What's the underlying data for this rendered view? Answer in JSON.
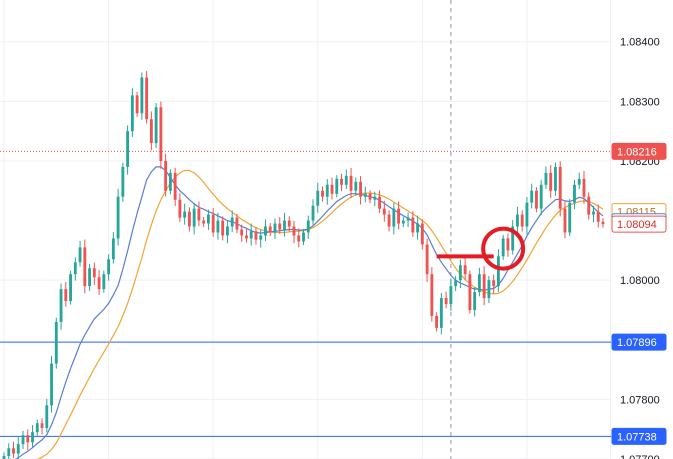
{
  "chart_data": {
    "type": "candlestick",
    "title": "",
    "xlabel": "",
    "ylabel": "",
    "ylim": [
      1.077,
      1.0847
    ],
    "grid": true,
    "y_ticks": [
      "1.08400",
      "1.08300",
      "1.08200",
      "1.08000",
      "1.07800",
      "1.07700"
    ],
    "colors": {
      "up": "#26a69a",
      "down": "#ef5350",
      "ma_fast": "#5b7bd5",
      "ma_slow": "#f0a534",
      "hline": "#2962ff",
      "dotted_level": "#ef5350",
      "annotation": "#e51c23",
      "grid": "#eef0f3",
      "text": "#131722"
    },
    "price_tags": [
      {
        "label": "1.08216",
        "value": 1.08216,
        "style": "red-filled"
      },
      {
        "label": "1.08115",
        "value": 1.08115,
        "style": "orange-outline"
      },
      {
        "label": "1.08098",
        "value": 1.08098,
        "style": "blue-outline"
      },
      {
        "label": "1.08094",
        "value": 1.08094,
        "style": "red-outline"
      },
      {
        "label": "1.07896",
        "value": 1.07896,
        "style": "blue-filled"
      },
      {
        "label": "1.07738",
        "value": 1.07738,
        "style": "blue-filled"
      }
    ],
    "horizontal_lines": [
      1.07896,
      1.07738
    ],
    "dotted_level": 1.08216,
    "crosshair_bar": 94,
    "annotations": {
      "marker_line": {
        "from_bar": 91,
        "to_bar": 103,
        "value": 1.0804
      },
      "circle": {
        "bar": 105,
        "value": 1.08053
      }
    },
    "series": [
      {
        "name": "candles",
        "closes": [
          1.07705,
          1.07718,
          1.07709,
          1.07725,
          1.0774,
          1.07728,
          1.07745,
          1.0776,
          1.07752,
          1.0779,
          1.0786,
          1.0793,
          1.07985,
          1.07965,
          1.0801,
          1.0803,
          1.08055,
          1.0799,
          1.0802,
          1.08005,
          1.07985,
          1.0801,
          1.08035,
          1.0807,
          1.0814,
          1.0819,
          1.0825,
          1.0831,
          1.0828,
          1.0834,
          1.0827,
          1.0823,
          1.0829,
          1.082,
          1.0815,
          1.0818,
          1.08135,
          1.08105,
          1.08115,
          1.0809,
          1.0812,
          1.081,
          1.08095,
          1.0811,
          1.0808,
          1.081,
          1.08075,
          1.0809,
          1.08105,
          1.08085,
          1.08075,
          1.0807,
          1.08082,
          1.08068,
          1.08075,
          1.0809,
          1.0808,
          1.08095,
          1.08085,
          1.081,
          1.0809,
          1.08075,
          1.08065,
          1.0808,
          1.081,
          1.08125,
          1.0815,
          1.0814,
          1.0816,
          1.08145,
          1.0817,
          1.0816,
          1.08175,
          1.0815,
          1.08165,
          1.0814,
          1.08145,
          1.08135,
          1.0814,
          1.0812,
          1.0811,
          1.0809,
          1.0812,
          1.08095,
          1.081,
          1.08105,
          1.0808,
          1.08095,
          1.0806,
          1.0801,
          1.0794,
          1.0792,
          1.0797,
          1.0796,
          1.0799,
          1.08,
          1.08025,
          1.0801,
          1.0795,
          1.0798,
          1.0801,
          1.0797,
          1.08,
          1.0799,
          1.0804,
          1.0807,
          1.0805,
          1.0809,
          1.0811,
          1.0809,
          1.0813,
          1.0815,
          1.0812,
          1.0816,
          1.0818,
          1.0815,
          1.0819,
          1.0812,
          1.0808,
          1.0813,
          1.0816,
          1.0817,
          1.0814,
          1.0811,
          1.08115,
          1.08098,
          1.08094
        ]
      },
      {
        "name": "",
        "values": [
          1.0769,
          1.07695,
          1.07698,
          1.07702,
          1.07708,
          1.07713,
          1.07719,
          1.07726,
          1.07732,
          1.07741,
          1.07757,
          1.07778,
          1.07804,
          1.07829,
          1.07852,
          1.07872,
          1.07893,
          1.07908,
          1.07922,
          1.07935,
          1.07943,
          1.07951,
          1.07961,
          1.07975,
          1.07991,
          1.08018,
          1.08049,
          1.08082,
          1.08112,
          1.0814,
          1.08168,
          1.08182,
          1.0819,
          1.0819,
          1.08184,
          1.08172,
          1.0816,
          1.0815,
          1.08143,
          1.08135,
          1.08128,
          1.08122,
          1.08119,
          1.08115,
          1.08112,
          1.08108,
          1.08104,
          1.081,
          1.08098,
          1.08095,
          1.0809,
          1.08087,
          1.08083,
          1.0808,
          1.08079,
          1.0808,
          1.08081,
          1.08082,
          1.08083,
          1.08084,
          1.08085,
          1.08085,
          1.08084,
          1.08084,
          1.08086,
          1.08091,
          1.08099,
          1.08107,
          1.08116,
          1.08124,
          1.08132,
          1.08137,
          1.08142,
          1.08145,
          1.08145,
          1.08144,
          1.08142,
          1.0814,
          1.08138,
          1.08134,
          1.08129,
          1.08123,
          1.08118,
          1.08113,
          1.08108,
          1.08104,
          1.08099,
          1.08094,
          1.08087,
          1.08076,
          1.08059,
          1.08043,
          1.0803,
          1.08019,
          1.08008,
          1.08,
          1.07995,
          1.07992,
          1.07988,
          1.07985,
          1.07985,
          1.07983,
          1.07985,
          1.07986,
          1.07992,
          1.08003,
          1.08017,
          1.0803,
          1.08044,
          1.08058,
          1.08074,
          1.08088,
          1.081,
          1.08112,
          1.08121,
          1.08128,
          1.08135,
          1.08136,
          1.08133,
          1.08132,
          1.08135,
          1.08139,
          1.08137,
          1.0813,
          1.08122,
          1.08114,
          1.08108
        ]
      },
      {
        "name": "",
        "values": [
          1.0768,
          1.07682,
          1.07684,
          1.07686,
          1.07689,
          1.07692,
          1.07695,
          1.07699,
          1.07703,
          1.07708,
          1.07716,
          1.07727,
          1.07742,
          1.07758,
          1.07774,
          1.0779,
          1.07807,
          1.07822,
          1.07837,
          1.07852,
          1.07866,
          1.07879,
          1.07893,
          1.07907,
          1.07922,
          1.0794,
          1.07961,
          1.07985,
          1.08011,
          1.08038,
          1.08067,
          1.08093,
          1.08116,
          1.08135,
          1.0815,
          1.08163,
          1.08173,
          1.0818,
          1.08184,
          1.08184,
          1.0818,
          1.08173,
          1.08164,
          1.08154,
          1.08144,
          1.08135,
          1.08127,
          1.0812,
          1.08114,
          1.08108,
          1.08102,
          1.08097,
          1.08092,
          1.08088,
          1.08085,
          1.08083,
          1.08081,
          1.0808,
          1.0808,
          1.0808,
          1.08081,
          1.08082,
          1.08082,
          1.08083,
          1.08085,
          1.08088,
          1.08093,
          1.08099,
          1.08106,
          1.08113,
          1.08121,
          1.08128,
          1.08134,
          1.08139,
          1.08143,
          1.08145,
          1.08146,
          1.08146,
          1.08145,
          1.08143,
          1.0814,
          1.08136,
          1.08131,
          1.08126,
          1.08121,
          1.08116,
          1.08111,
          1.08106,
          1.081,
          1.08093,
          1.08083,
          1.08071,
          1.08058,
          1.08045,
          1.08032,
          1.0802,
          1.0801,
          1.08001,
          1.07994,
          1.07988,
          1.07984,
          1.0798,
          1.07978,
          1.07977,
          1.07978,
          1.07982,
          1.07989,
          1.07998,
          1.08009,
          1.08021,
          1.08034,
          1.08048,
          1.08062,
          1.08075,
          1.08088,
          1.08099,
          1.08109,
          1.08117,
          1.08122,
          1.08126,
          1.08129,
          1.08132,
          1.08133,
          1.08132,
          1.08129,
          1.08124,
          1.08119
        ]
      }
    ]
  }
}
